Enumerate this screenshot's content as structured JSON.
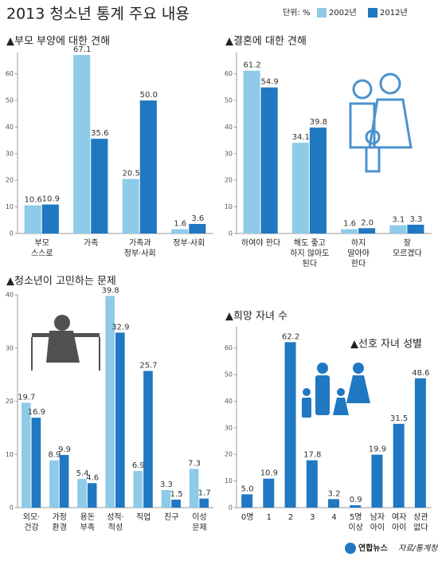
{
  "title": "2013 청소년 통계 주요 내용",
  "unit": "단위: %",
  "source": "자료/통계청",
  "logo": "연합뉴스",
  "chart_data": [
    {
      "type": "bar",
      "title": "▲부모 부양에 대한 견해",
      "categories": [
        [
          "부모",
          "스스로"
        ],
        [
          "가족"
        ],
        [
          "가족과",
          "정부·사회"
        ],
        [
          "정부·사회"
        ]
      ],
      "series": [
        {
          "name": "2002년",
          "color": "#8ecbe8",
          "values": [
            10.6,
            67.1,
            20.5,
            1.6
          ]
        },
        {
          "name": "2012년",
          "color": "#1f78c1",
          "values": [
            10.9,
            35.6,
            50.0,
            3.6
          ],
          "value_labels": [
            "10.9",
            "35.6",
            "50.0",
            "3.6"
          ]
        }
      ],
      "ylim": [
        0,
        68
      ],
      "yticks": [
        0,
        10,
        20,
        30,
        40,
        50,
        60
      ]
    },
    {
      "type": "bar",
      "title": "▲결혼에 대한 견해",
      "categories": [
        [
          "하여야 한다"
        ],
        [
          "해도 좋고",
          "하지 않아도",
          "된다"
        ],
        [
          "하지",
          "말아야",
          "한다"
        ],
        [
          "잘",
          "모르겠다"
        ]
      ],
      "series": [
        {
          "color": "#8ecbe8",
          "values": [
            61.2,
            34.1,
            1.6,
            3.1
          ]
        },
        {
          "color": "#1f78c1",
          "values": [
            54.9,
            39.8,
            2.0,
            3.3
          ],
          "value_labels": [
            "54.9",
            "39.8",
            "2.0",
            "3.3"
          ]
        }
      ],
      "ylim": [
        0,
        68
      ],
      "yticks": [
        0,
        10,
        20,
        30,
        40,
        50,
        60
      ]
    },
    {
      "type": "bar",
      "title": "▲청소년이 고민하는 문제",
      "categories": [
        [
          "외모·",
          "건강"
        ],
        [
          "가정",
          "환경"
        ],
        [
          "용돈",
          "부족"
        ],
        [
          "성적·",
          "적성"
        ],
        [
          "직업"
        ],
        [
          "친구"
        ],
        [
          "이성",
          "문제"
        ]
      ],
      "series": [
        {
          "color": "#8ecbe8",
          "values": [
            19.7,
            8.9,
            5.4,
            39.8,
            6.9,
            3.3,
            7.3
          ]
        },
        {
          "color": "#1f78c1",
          "values": [
            16.9,
            9.9,
            4.6,
            32.9,
            25.7,
            1.5,
            1.7
          ]
        }
      ],
      "ylim": [
        0,
        40
      ],
      "yticks": [
        0,
        10,
        20,
        30,
        40
      ]
    },
    {
      "type": "bar",
      "title": "▲희망 자녀 수",
      "annotation": "▲선호 자녀 성별",
      "categories": [
        [
          "0명"
        ],
        [
          "1"
        ],
        [
          "2"
        ],
        [
          "3"
        ],
        [
          "4"
        ],
        [
          "5명",
          "이상"
        ],
        [
          "남자",
          "아이"
        ],
        [
          "여자",
          "아이"
        ],
        [
          "상관",
          "없다"
        ]
      ],
      "series": [
        {
          "color": "#1f78c1",
          "values": [
            5.0,
            10.9,
            62.2,
            17.8,
            3.2,
            0.9,
            19.9,
            31.5,
            48.6
          ],
          "value_labels": [
            "5.0",
            "10.9",
            "62.2",
            "17.8",
            "3.2",
            "0.9",
            "19.9",
            "31.5",
            "48.6"
          ]
        }
      ],
      "ylim": [
        0,
        68
      ],
      "yticks": [
        0,
        10,
        20,
        30,
        40,
        50,
        60
      ]
    }
  ]
}
